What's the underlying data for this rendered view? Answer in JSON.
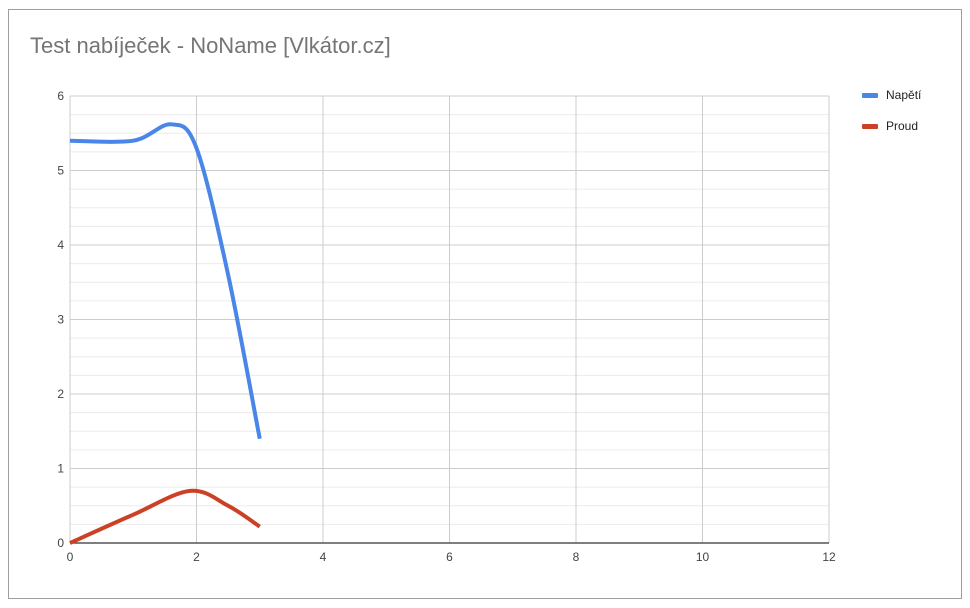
{
  "chart_data": {
    "type": "line",
    "title": "Test nabíječek - NoName [Vlkátor.cz]",
    "xlabel": "",
    "ylabel": "",
    "xlim": [
      0,
      12
    ],
    "ylim": [
      0,
      6
    ],
    "x_ticks": [
      "0",
      "2",
      "4",
      "6",
      "8",
      "10",
      "12"
    ],
    "y_ticks": [
      "0",
      "1",
      "2",
      "3",
      "4",
      "5",
      "6"
    ],
    "grid": true,
    "legend_position": "right",
    "series": [
      {
        "name": "Napětí",
        "color": "#4a86e8",
        "x": [
          0,
          1,
          1.6,
          2,
          2.5,
          3
        ],
        "y": [
          5.4,
          5.4,
          5.62,
          5.3,
          3.6,
          1.4
        ]
      },
      {
        "name": "Proud",
        "color": "#cc4125",
        "x": [
          0,
          1,
          1.9,
          2.5,
          3
        ],
        "y": [
          0,
          0.38,
          0.7,
          0.5,
          0.22
        ]
      }
    ]
  }
}
